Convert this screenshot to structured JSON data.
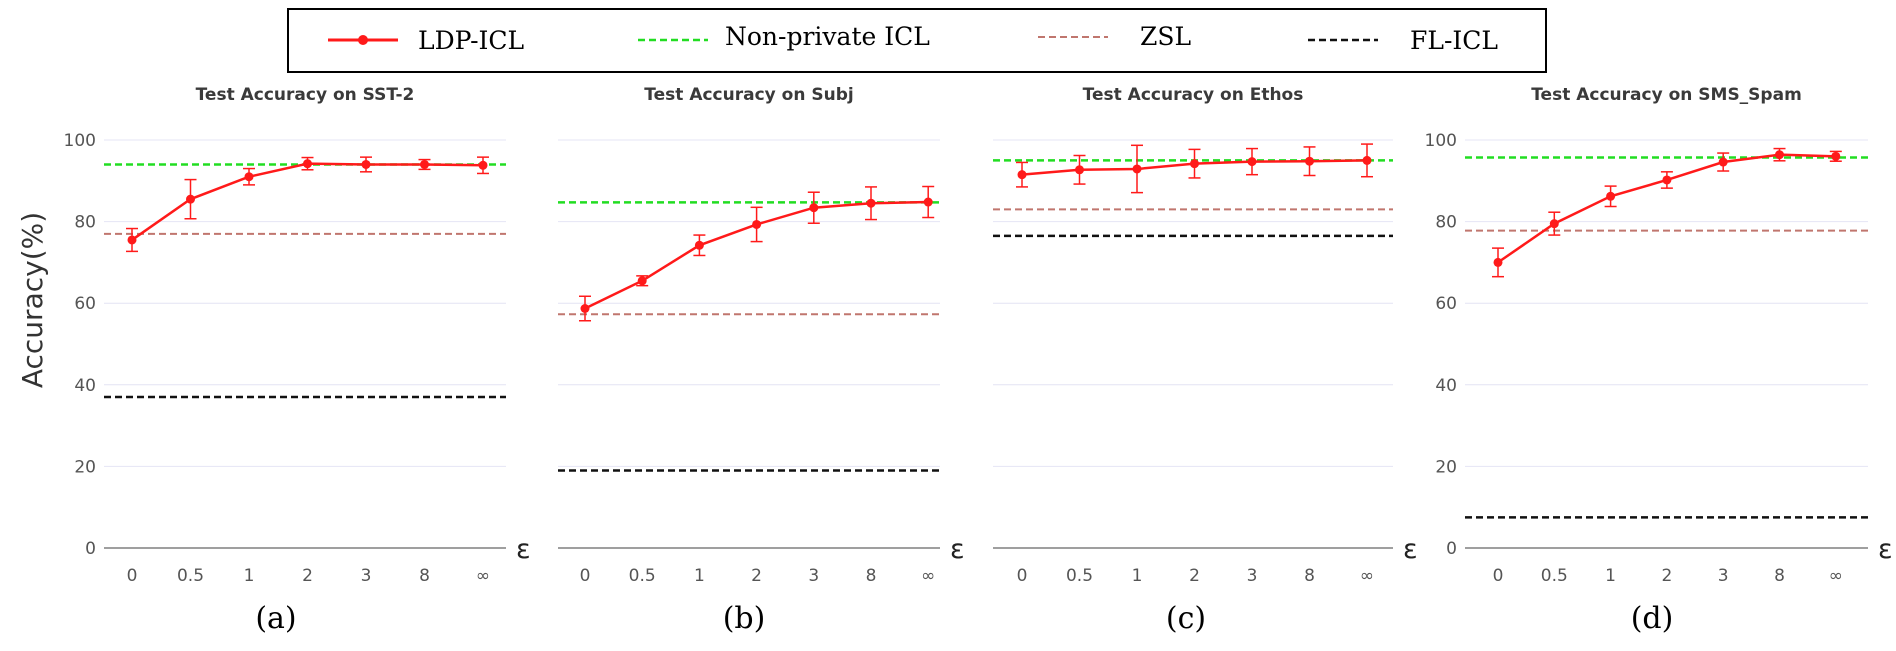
{
  "legend": {
    "ldp": "LDP-ICL",
    "nonprivate": "Non-private ICL",
    "zsl": "ZSL",
    "fl": "FL-ICL"
  },
  "colors": {
    "ldp": "#ff1a1a",
    "nonprivate": "#22dd22",
    "zsl": "#c0766e",
    "fl": "#111111",
    "grid": "#e4e4f4",
    "axis": "#666666"
  },
  "ylabel": "Accuracy(%)",
  "chart_data": [
    {
      "type": "line",
      "title": "Test Accuracy on SST-2",
      "caption": "(a)",
      "xlabel": "ε",
      "categories": [
        "0",
        "0.5",
        "1",
        "2",
        "3",
        "8",
        "∞"
      ],
      "yticks": [
        "0",
        "20",
        "40",
        "60",
        "80",
        "100"
      ],
      "ylim": [
        0,
        100
      ],
      "series": [
        {
          "name": "LDP-ICL",
          "values": [
            75.5,
            85.5,
            91.0,
            94.2,
            94.0,
            94.0,
            93.8
          ],
          "errors": [
            2.8,
            4.8,
            2.0,
            1.5,
            1.8,
            1.2,
            2.0
          ]
        }
      ],
      "baselines": {
        "Non-private ICL": 94.0,
        "ZSL": 77.0,
        "FL-ICL": 37.0
      }
    },
    {
      "type": "line",
      "title": "Test Accuracy on Subj",
      "caption": "(b)",
      "xlabel": "ε",
      "categories": [
        "0",
        "0.5",
        "1",
        "2",
        "3",
        "8",
        "∞"
      ],
      "yticks": [],
      "ylim": [
        0,
        100
      ],
      "series": [
        {
          "name": "LDP-ICL",
          "values": [
            58.7,
            65.5,
            74.2,
            79.3,
            83.4,
            84.5,
            84.8
          ],
          "errors": [
            3.0,
            1.2,
            2.5,
            4.2,
            3.8,
            4.0,
            3.8
          ]
        }
      ],
      "baselines": {
        "Non-private ICL": 84.7,
        "ZSL": 57.3,
        "FL-ICL": 19.0
      }
    },
    {
      "type": "line",
      "title": "Test Accuracy on Ethos",
      "caption": "(c)",
      "xlabel": "ε",
      "categories": [
        "0",
        "0.5",
        "1",
        "2",
        "3",
        "8",
        "∞"
      ],
      "yticks": [],
      "ylim": [
        0,
        100
      ],
      "series": [
        {
          "name": "LDP-ICL",
          "values": [
            91.5,
            92.7,
            92.9,
            94.2,
            94.7,
            94.8,
            95.0
          ],
          "errors": [
            3.0,
            3.5,
            5.8,
            3.5,
            3.2,
            3.5,
            4.0
          ]
        }
      ],
      "baselines": {
        "Non-private ICL": 95.0,
        "ZSL": 83.0,
        "FL-ICL": 76.5
      }
    },
    {
      "type": "line",
      "title": "Test Accuracy on SMS_Spam",
      "caption": "(d)",
      "xlabel": "ε",
      "categories": [
        "0",
        "0.5",
        "1",
        "2",
        "3",
        "8",
        "∞"
      ],
      "yticks": [
        "0",
        "20",
        "40",
        "60",
        "80",
        "100"
      ],
      "ylim": [
        0,
        100
      ],
      "series": [
        {
          "name": "LDP-ICL",
          "values": [
            70.0,
            79.5,
            86.2,
            90.2,
            94.6,
            96.4,
            96.0
          ],
          "errors": [
            3.5,
            2.8,
            2.5,
            2.0,
            2.2,
            1.5,
            1.2
          ]
        }
      ],
      "baselines": {
        "Non-private ICL": 95.7,
        "ZSL": 77.8,
        "FL-ICL": 7.5
      }
    }
  ]
}
